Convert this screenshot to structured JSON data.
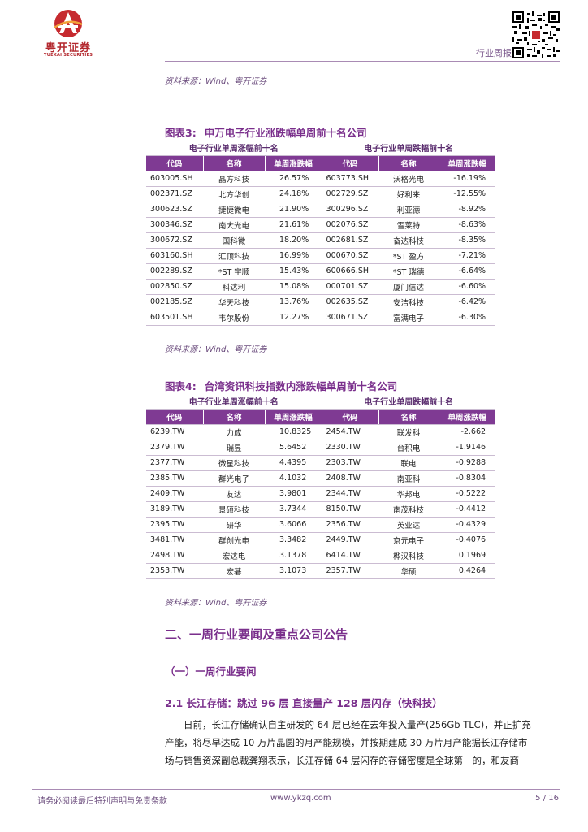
{
  "header": {
    "brand_cn": "粤开证券",
    "brand_en": "YUEKAI SECURITIES",
    "report_type": "行业周报"
  },
  "source_top": "资料来源：Wind、粤开证券",
  "figure3": {
    "number": "图表3:",
    "title": "申万电子行业涨跌幅单周前十名公司",
    "gain_group": "电子行业单周涨幅前十名",
    "loss_group": "电子行业单周跌幅前十名",
    "columns": [
      "代码",
      "名称",
      "单周涨跌幅",
      "代码",
      "名称",
      "单周涨跌幅"
    ],
    "rows": [
      [
        "603005.SH",
        "晶方科技",
        "26.57%",
        "603773.SH",
        "沃格光电",
        "-16.19%"
      ],
      [
        "002371.SZ",
        "北方华创",
        "24.18%",
        "002729.SZ",
        "好利来",
        "-12.55%"
      ],
      [
        "300623.SZ",
        "捷捷微电",
        "21.90%",
        "300296.SZ",
        "利亚德",
        "-8.92%"
      ],
      [
        "300346.SZ",
        "南大光电",
        "21.61%",
        "002076.SZ",
        "雪莱特",
        "-8.63%"
      ],
      [
        "300672.SZ",
        "国科微",
        "18.20%",
        "002681.SZ",
        "奋达科技",
        "-8.35%"
      ],
      [
        "603160.SH",
        "汇顶科技",
        "16.99%",
        "000670.SZ",
        "*ST 盈方",
        "-7.21%"
      ],
      [
        "002289.SZ",
        "*ST 宇顺",
        "15.43%",
        "600666.SH",
        "*ST 瑞德",
        "-6.64%"
      ],
      [
        "002850.SZ",
        "科达利",
        "15.08%",
        "000701.SZ",
        "厦门信达",
        "-6.60%"
      ],
      [
        "002185.SZ",
        "华天科技",
        "13.76%",
        "002635.SZ",
        "安洁科技",
        "-6.42%"
      ],
      [
        "603501.SH",
        "韦尔股份",
        "12.27%",
        "300671.SZ",
        "富满电子",
        "-6.30%"
      ]
    ],
    "source": "资料来源：Wind、粤开证券"
  },
  "figure4": {
    "number": "图表4:",
    "title": "台湾资讯科技指数内涨跌幅单周前十名公司",
    "gain_group": "电子行业单周涨幅前十名",
    "loss_group": "电子行业单周跌幅前十名",
    "columns": [
      "代码",
      "名称",
      "单周涨跌幅",
      "代码",
      "名称",
      "单周涨跌幅"
    ],
    "rows": [
      [
        "6239.TW",
        "力成",
        "10.8325",
        "2454.TW",
        "联发科",
        "-2.662"
      ],
      [
        "2379.TW",
        "瑞昱",
        "5.6452",
        "2330.TW",
        "台积电",
        "-1.9146"
      ],
      [
        "2377.TW",
        "微星科技",
        "4.4395",
        "2303.TW",
        "联电",
        "-0.9288"
      ],
      [
        "2385.TW",
        "群光电子",
        "4.1032",
        "2408.TW",
        "南亚科",
        "-0.8304"
      ],
      [
        "2409.TW",
        "友达",
        "3.9801",
        "2344.TW",
        "华邦电",
        "-0.5222"
      ],
      [
        "3189.TW",
        "景硕科技",
        "3.7344",
        "8150.TW",
        "南茂科技",
        "-0.4412"
      ],
      [
        "2395.TW",
        "研华",
        "3.6066",
        "2356.TW",
        "英业达",
        "-0.4329"
      ],
      [
        "3481.TW",
        "群创光电",
        "3.3482",
        "2449.TW",
        "京元电子",
        "-0.4076"
      ],
      [
        "2498.TW",
        "宏达电",
        "3.1378",
        "6414.TW",
        "桦汉科技",
        "0.1969"
      ],
      [
        "2353.TW",
        "宏碁",
        "3.1073",
        "2357.TW",
        "华硕",
        "0.4264"
      ]
    ],
    "source": "资料来源：Wind、粤开证券"
  },
  "section": {
    "h2": "二、一周行业要闻及重点公司公告",
    "h3": "（一）一周行业要闻",
    "h4": "2.1 长江存储：跳过 96 层 直接量产 128 层闪存（快科技）",
    "paragraph_lines": [
      "日前，长江存储确认自主研发的 64 层已经在去年投入量产(256Gb TLC)，并正扩充",
      "产能，将尽早达成 10 万片晶圆的月产能规模，并按期建成 30 万片月产能据长江存储市",
      "场与销售资深副总裁龚翔表示，长江存储 64 层闪存的存储密度是全球第一的，和友商"
    ]
  },
  "footer": {
    "disclaimer": "请务必阅读最后特别声明与免责条款",
    "website": "www.ykzq.com",
    "page": "5 / 16"
  },
  "colors": {
    "accent": "#7a2f8c",
    "header_fill": "#7f3a93",
    "brand_red": "#b3282e"
  },
  "icons": [
    "yuekai-logo-icon",
    "qr-code-icon"
  ]
}
